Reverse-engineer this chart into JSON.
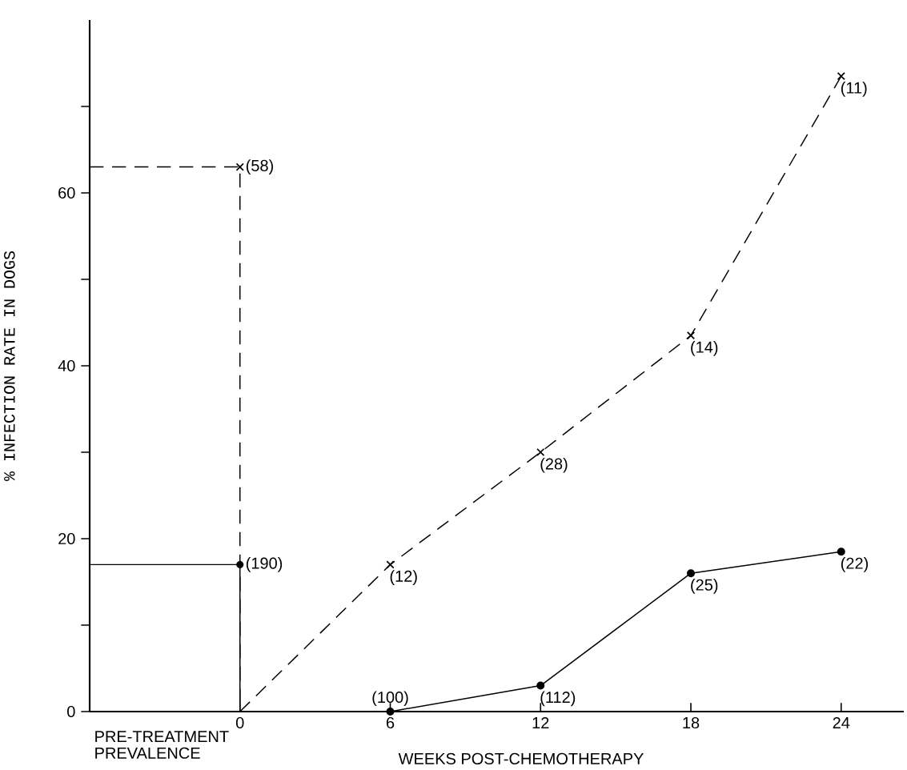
{
  "chart_data": {
    "type": "line",
    "xlabel": "WEEKS POST-CHEMOTHERAPY",
    "ylabel": "% INFECTION RATE IN DOGS",
    "annotations": [
      "PRE-TREATMENT PREVALENCE",
      {
        "text": "(58)",
        "x": 0,
        "y": 63
      },
      {
        "text": "(190)",
        "x": 0,
        "y": 17
      },
      {
        "text": "(12)",
        "x": 6,
        "y": 17
      },
      {
        "text": "(28)",
        "x": 12,
        "y": 30
      },
      {
        "text": "(14)",
        "x": 18,
        "y": 43.5
      },
      {
        "text": "(11)",
        "x": 24,
        "y": 73.5
      },
      {
        "text": "(100)",
        "x": 6,
        "y": 0
      },
      {
        "text": "(112)",
        "x": 12,
        "y": 3
      },
      {
        "text": "(25)",
        "x": 18,
        "y": 16
      },
      {
        "text": "(22)",
        "x": 24,
        "y": 18.5
      }
    ],
    "xlim": [
      -6,
      26.5
    ],
    "ylim": [
      0,
      80
    ],
    "xticks": [
      0,
      6,
      12,
      18,
      24
    ],
    "yticks": [
      0,
      {
        "value": 10,
        "label": null
      },
      20,
      {
        "value": 30,
        "label": null
      },
      40,
      {
        "value": 50,
        "label": null
      },
      60,
      {
        "value": 70,
        "label": null
      }
    ],
    "series": [
      {
        "color": "#000000",
        "line_style": "dashed",
        "marker": "none",
        "x": [
          -6,
          0,
          0
        ],
        "values": [
          63,
          63,
          0
        ]
      },
      {
        "color": "#000000",
        "line_style": "solid",
        "marker": "none",
        "x": [
          -6,
          0,
          0
        ],
        "values": [
          17,
          17,
          0
        ]
      },
      {
        "color": "#000000",
        "line_style": "dashed",
        "marker": "none",
        "x": [
          0,
          6,
          12,
          18,
          24
        ],
        "values": [
          0,
          17,
          30,
          43.5,
          73.5
        ]
      },
      {
        "type": "scatter",
        "color": "#000000",
        "marker": "cross",
        "x": [
          0,
          6,
          12,
          18,
          24
        ],
        "values": [
          63,
          17,
          30,
          43.5,
          73.5
        ]
      },
      {
        "color": "#000000",
        "line_style": "solid",
        "marker": "circle",
        "x": [
          6,
          12,
          18,
          24
        ],
        "values": [
          0,
          3,
          16,
          18.5
        ]
      },
      {
        "type": "scatter",
        "color": "#000000",
        "marker": "circle",
        "x": [
          0
        ],
        "values": [
          17
        ]
      }
    ]
  }
}
